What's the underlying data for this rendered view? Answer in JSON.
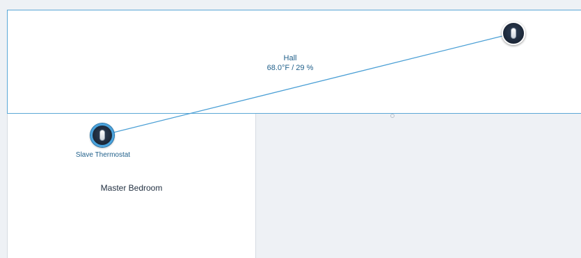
{
  "rooms": {
    "hall": {
      "name": "Hall",
      "status": "68.0°F / 29 %"
    },
    "master_bedroom": {
      "name": "Master Bedroom"
    }
  },
  "devices": {
    "hall_thermostat": {
      "icon": "thermostat-icon"
    },
    "slave_thermostat": {
      "name": "Slave Thermostat",
      "icon": "thermostat-icon"
    }
  },
  "colors": {
    "link_line": "#4a9fd5",
    "room_border": "#5aa7d6",
    "label_text": "#1f5f8a",
    "canvas_background": "#eef1f5"
  }
}
